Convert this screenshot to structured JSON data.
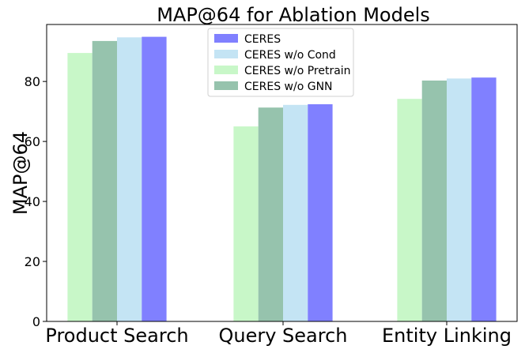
{
  "chart_data": {
    "type": "bar",
    "title": "MAP@64 for Ablation Models",
    "xlabel": "",
    "ylabel": "MAP@64",
    "categories": [
      "Product Search",
      "Query Search",
      "Entity Linking"
    ],
    "ylim": [
      0,
      99
    ],
    "yticks": [
      0,
      20,
      40,
      60,
      80
    ],
    "grid": false,
    "legend_position": "top-center",
    "series": [
      {
        "name": "CERES w/o Pretrain",
        "color": "#c8f7c8",
        "values": [
          89.5,
          65.0,
          74.2
        ]
      },
      {
        "name": "CERES w/o GNN",
        "color": "#96c3ad",
        "values": [
          93.5,
          71.3,
          80.3
        ]
      },
      {
        "name": "CERES w/o Cond",
        "color": "#c4e4f4",
        "values": [
          94.7,
          72.2,
          81.0
        ]
      },
      {
        "name": "CERES",
        "color": "#8080ff",
        "values": [
          94.9,
          72.4,
          81.3
        ]
      }
    ],
    "legend_order": [
      "CERES",
      "CERES w/o Cond",
      "CERES w/o Pretrain",
      "CERES w/o GNN"
    ]
  }
}
